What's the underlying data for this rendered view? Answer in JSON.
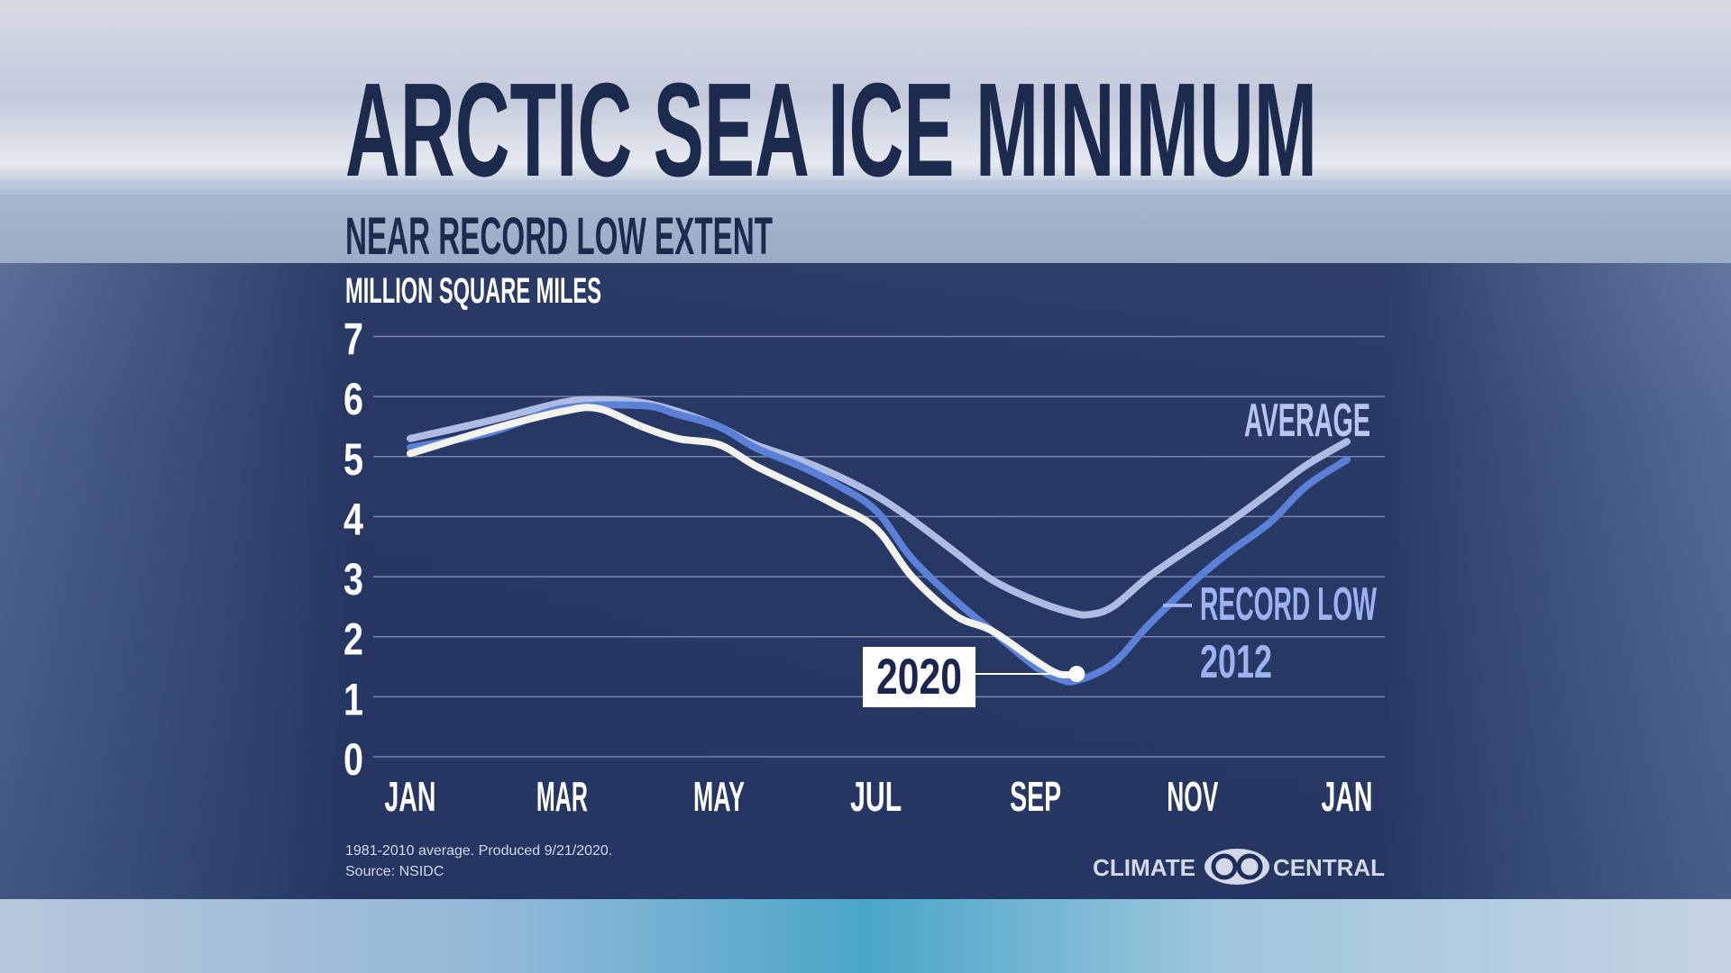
{
  "header": {
    "title": "ARCTIC SEA ICE MINIMUM",
    "subtitle": "NEAR RECORD LOW EXTENT"
  },
  "footer": {
    "note": "1981-2010 average. Produced 9/21/2020.",
    "source": "Source: NSIDC",
    "logo_left": "CLIMATE",
    "logo_right": "CENTRAL"
  },
  "colors": {
    "title": "#1c2a4e",
    "average": "#aebbe3",
    "record_low": "#5b80d8",
    "year_2020": "#f3f3ee",
    "record_label": "#9fb1f2"
  },
  "chart_data": {
    "type": "line",
    "title": "ARCTIC SEA ICE MINIMUM",
    "subtitle": "NEAR RECORD LOW EXTENT",
    "ylabel": "MILLION SQUARE MILES",
    "ylim": [
      0,
      7
    ],
    "yticks": [
      "0",
      "1",
      "2",
      "3",
      "4",
      "5",
      "6",
      "7"
    ],
    "xticks": [
      {
        "date": "01-01",
        "label": "JAN"
      },
      {
        "date": "03-01",
        "label": "MAR"
      },
      {
        "date": "05-01",
        "label": "MAY"
      },
      {
        "date": "07-01",
        "label": "JUL"
      },
      {
        "date": "09-01",
        "label": "SEP"
      },
      {
        "date": "11-01",
        "label": "NOV"
      },
      {
        "date": "12-31",
        "label": "JAN"
      }
    ],
    "grid": true,
    "series": [
      {
        "name": "AVERAGE",
        "label": "AVERAGE",
        "x": [
          "01-01",
          "02-01",
          "03-01",
          "03-15",
          "04-01",
          "04-15",
          "05-01",
          "05-15",
          "06-01",
          "06-15",
          "07-01",
          "07-15",
          "08-01",
          "08-15",
          "09-01",
          "09-15",
          "09-22",
          "10-01",
          "10-15",
          "11-01",
          "11-15",
          "12-01",
          "12-15",
          "12-31"
        ],
        "y": [
          5.3,
          5.6,
          5.9,
          5.95,
          5.9,
          5.75,
          5.5,
          5.2,
          4.95,
          4.7,
          4.35,
          3.95,
          3.4,
          2.95,
          2.6,
          2.4,
          2.37,
          2.5,
          3.0,
          3.5,
          3.9,
          4.4,
          4.85,
          5.25
        ]
      },
      {
        "name": "RECORD LOW 2012",
        "label_line1": "RECORD LOW",
        "label_line2": "2012",
        "x": [
          "01-01",
          "02-01",
          "03-01",
          "04-01",
          "04-15",
          "05-01",
          "05-15",
          "06-01",
          "06-15",
          "07-01",
          "07-15",
          "08-01",
          "08-15",
          "09-01",
          "09-10",
          "09-17",
          "10-01",
          "10-15",
          "11-01",
          "11-15",
          "12-01",
          "12-15",
          "12-31"
        ],
        "y": [
          5.15,
          5.4,
          5.8,
          5.85,
          5.7,
          5.5,
          5.15,
          4.85,
          4.55,
          4.1,
          3.3,
          2.6,
          2.1,
          1.5,
          1.3,
          1.27,
          1.55,
          2.2,
          2.9,
          3.4,
          3.9,
          4.5,
          4.95
        ]
      },
      {
        "name": "2020",
        "label": "2020",
        "x": [
          "01-01",
          "02-01",
          "03-01",
          "03-15",
          "04-01",
          "04-15",
          "05-01",
          "05-15",
          "06-01",
          "06-15",
          "07-01",
          "07-15",
          "08-01",
          "08-15",
          "09-01",
          "09-10",
          "09-17"
        ],
        "y": [
          5.05,
          5.45,
          5.75,
          5.8,
          5.5,
          5.3,
          5.2,
          4.85,
          4.5,
          4.2,
          3.8,
          3.0,
          2.35,
          2.1,
          1.6,
          1.38,
          1.38
        ]
      }
    ]
  }
}
